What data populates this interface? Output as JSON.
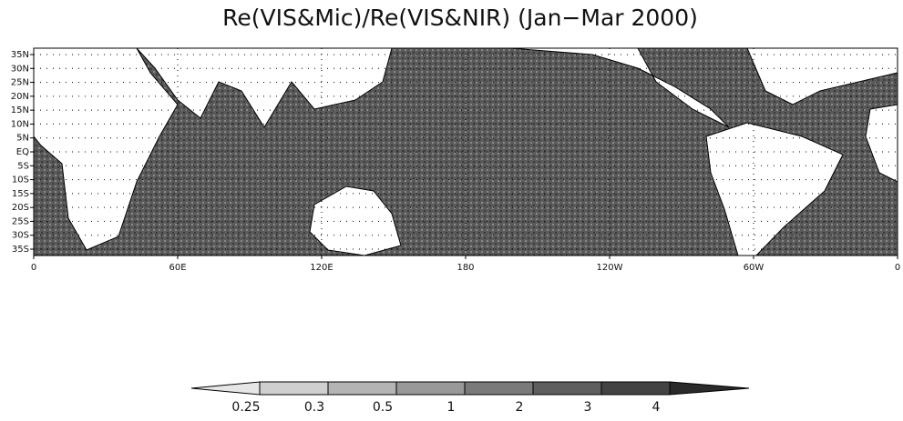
{
  "title": "Re(VIS&Mic)/Re(VIS&NIR) (Jan−Mar 2000)",
  "latitude_labels": [
    "35N",
    "30N",
    "25N",
    "20N",
    "15N",
    "10N",
    "5N",
    "EQ",
    "5S",
    "10S",
    "15S",
    "20S",
    "25S",
    "30S",
    "35S"
  ],
  "longitude_labels": [
    "0",
    "60E",
    "120E",
    "180",
    "120W",
    "60W",
    "0"
  ],
  "colorbar": {
    "labels": [
      0.25,
      0.3,
      0.5,
      1,
      2,
      3,
      4
    ]
  }
}
